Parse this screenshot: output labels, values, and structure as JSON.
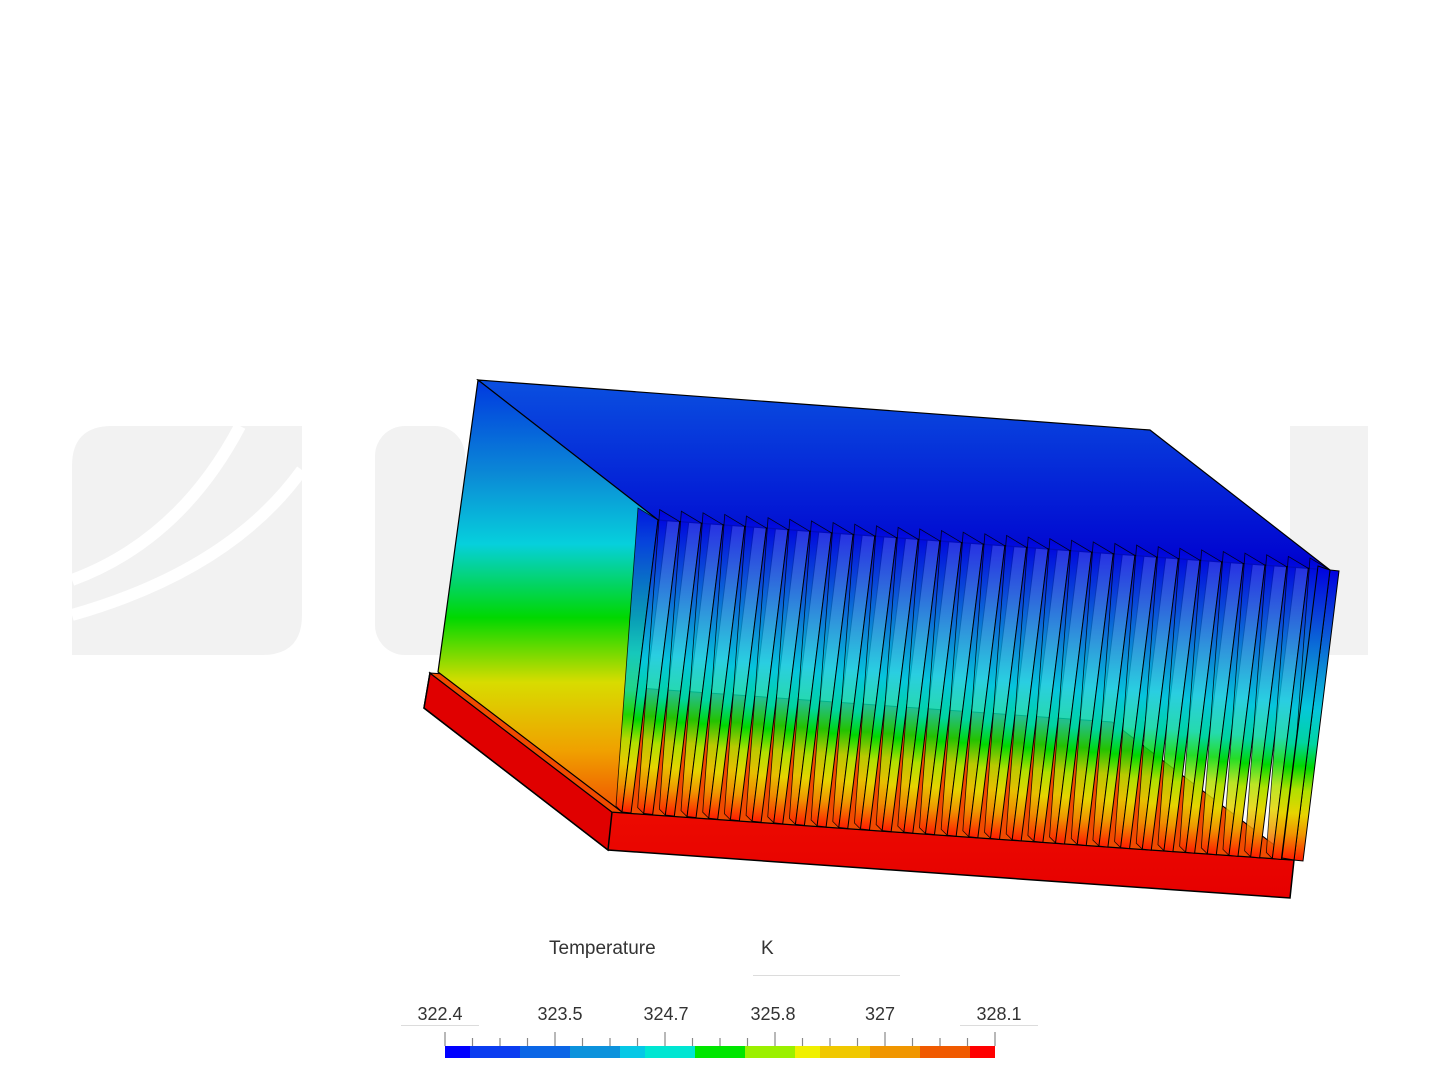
{
  "legend": {
    "title": "Temperature",
    "unit": "K",
    "min": 322.4,
    "max": 328.1,
    "tick_labels": [
      "322.4",
      "323.5",
      "324.7",
      "325.8",
      "327",
      "328.1"
    ],
    "tick_values": [
      322.4,
      323.5,
      324.7,
      325.8,
      327.0,
      328.1
    ],
    "colormap": [
      "#0000ff",
      "#0a3cf0",
      "#0b66e6",
      "#0c92dc",
      "#06c8e6",
      "#00e6d2",
      "#00e600",
      "#9bf000",
      "#f0f000",
      "#f0c800",
      "#f09600",
      "#f05a00",
      "#ff0000"
    ]
  },
  "model": {
    "type": "heat-sink",
    "fin_count": 32,
    "watermark": "SIMSCALE"
  }
}
